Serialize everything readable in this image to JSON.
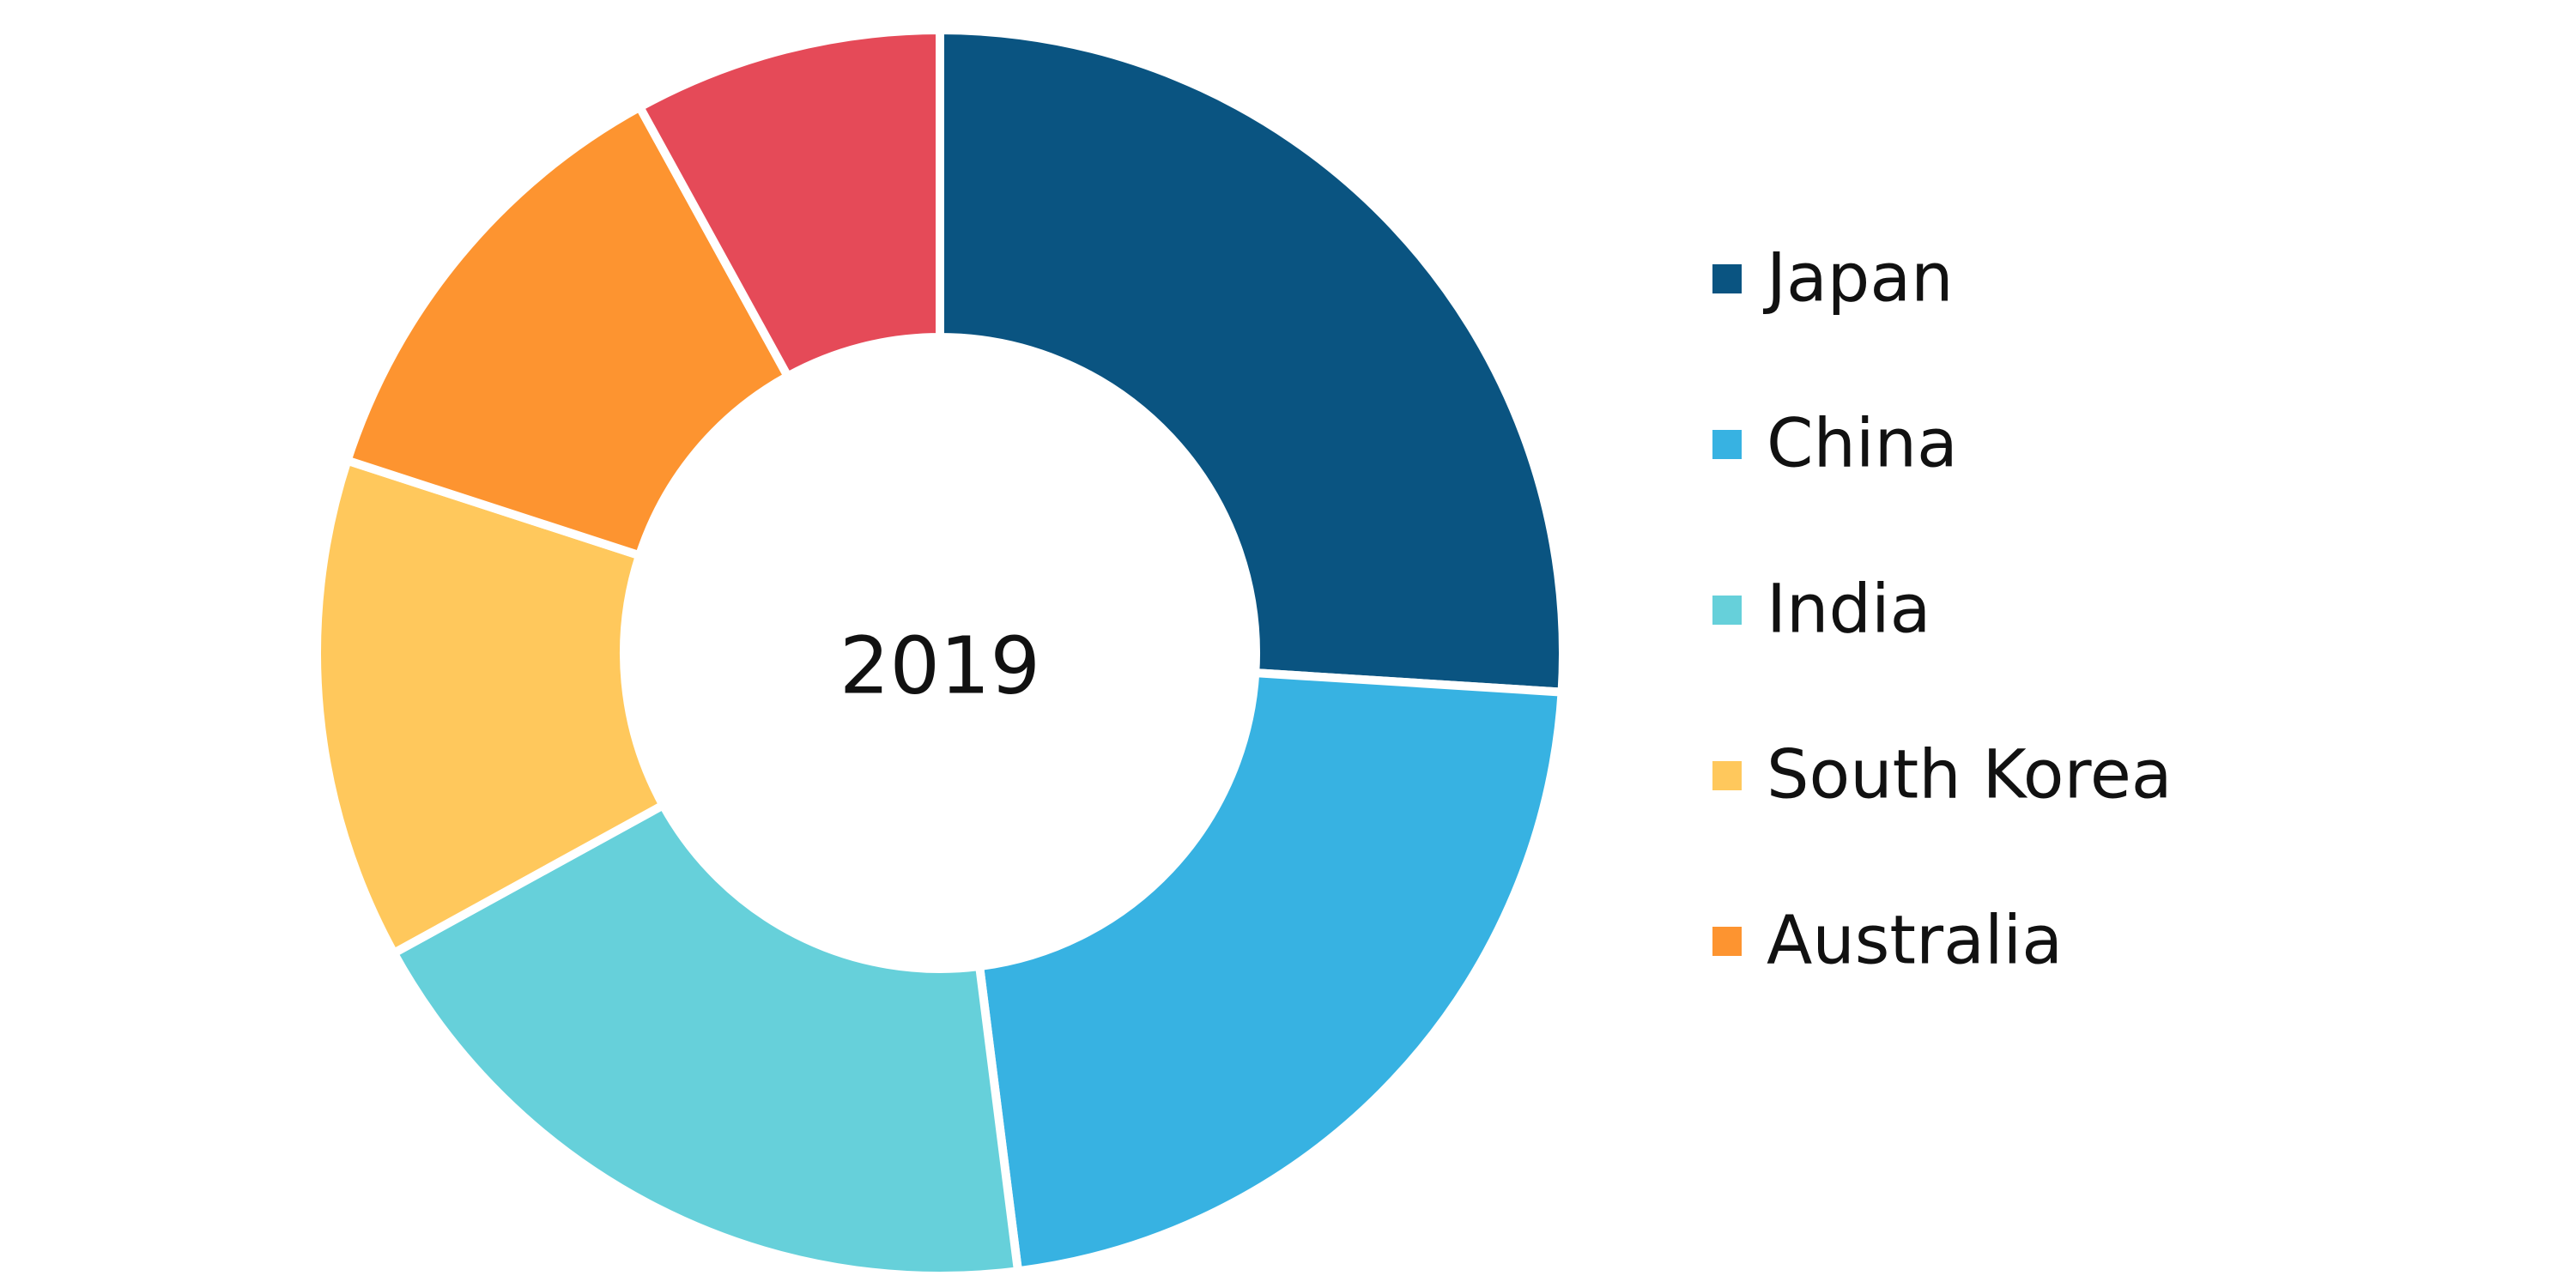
{
  "chart_data": {
    "type": "donut",
    "center_label": "2019",
    "categories": [
      "Japan",
      "China",
      "India",
      "South Korea",
      "Australia",
      null
    ],
    "values": [
      26,
      22,
      19,
      13,
      12,
      8
    ],
    "colors": [
      "#0a5481",
      "#37b2e2",
      "#66d0da",
      "#ffc85c",
      "#fd9430",
      "#e54a58"
    ],
    "legend": "right"
  }
}
